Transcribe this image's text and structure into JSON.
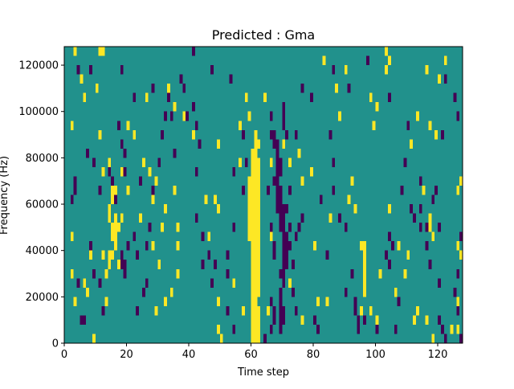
{
  "chart_data": {
    "type": "heatmap",
    "title": "Predicted : Gma",
    "xlabel": "Time step",
    "ylabel": "Frequency (Hz)",
    "xlim": [
      0,
      128
    ],
    "ylim": [
      0,
      128000
    ],
    "x_ticks": [
      0,
      20,
      40,
      60,
      80,
      100,
      120
    ],
    "y_ticks": [
      0,
      20000,
      40000,
      60000,
      80000,
      100000,
      120000
    ],
    "x_tick_labels": [
      "0",
      "20",
      "40",
      "60",
      "80",
      "100",
      "120"
    ],
    "y_tick_labels": [
      "0",
      "20000",
      "40000",
      "60000",
      "80000",
      "100000",
      "120000"
    ],
    "grid": false,
    "colormap": "viridis",
    "value_levels": [
      -1,
      0,
      1
    ],
    "colors": {
      "low": "#440154",
      "mid": "#21918c",
      "high": "#fde725"
    },
    "background_value": 0,
    "cell_size": {
      "time_step": 1,
      "frequency_hz": 4000
    },
    "high_cells": [
      [
        60,
        0
      ],
      [
        61,
        0
      ],
      [
        62,
        0
      ],
      [
        60,
        4000
      ],
      [
        61,
        4000
      ],
      [
        62,
        4000
      ],
      [
        60,
        8000
      ],
      [
        61,
        8000
      ],
      [
        62,
        8000
      ],
      [
        60,
        12000
      ],
      [
        61,
        12000
      ],
      [
        62,
        12000
      ],
      [
        60,
        16000
      ],
      [
        61,
        16000
      ],
      [
        60,
        20000
      ],
      [
        61,
        20000
      ],
      [
        62,
        20000
      ],
      [
        60,
        24000
      ],
      [
        61,
        24000
      ],
      [
        62,
        24000
      ],
      [
        60,
        28000
      ],
      [
        61,
        28000
      ],
      [
        62,
        28000
      ],
      [
        60,
        32000
      ],
      [
        61,
        32000
      ],
      [
        62,
        32000
      ],
      [
        60,
        36000
      ],
      [
        61,
        36000
      ],
      [
        62,
        36000
      ],
      [
        60,
        40000
      ],
      [
        61,
        40000
      ],
      [
        62,
        40000
      ],
      [
        59,
        44000
      ],
      [
        60,
        44000
      ],
      [
        61,
        44000
      ],
      [
        62,
        44000
      ],
      [
        59,
        48000
      ],
      [
        60,
        48000
      ],
      [
        61,
        48000
      ],
      [
        62,
        48000
      ],
      [
        59,
        52000
      ],
      [
        60,
        52000
      ],
      [
        61,
        52000
      ],
      [
        62,
        52000
      ],
      [
        59,
        56000
      ],
      [
        60,
        56000
      ],
      [
        61,
        56000
      ],
      [
        62,
        56000
      ],
      [
        59,
        60000
      ],
      [
        60,
        60000
      ],
      [
        61,
        60000
      ],
      [
        62,
        60000
      ],
      [
        59,
        64000
      ],
      [
        60,
        64000
      ],
      [
        61,
        64000
      ],
      [
        62,
        64000
      ],
      [
        59,
        68000
      ],
      [
        60,
        68000
      ],
      [
        61,
        68000
      ],
      [
        62,
        68000
      ],
      [
        60,
        72000
      ],
      [
        61,
        72000
      ],
      [
        62,
        72000
      ],
      [
        60,
        76000
      ],
      [
        61,
        76000
      ],
      [
        62,
        76000
      ],
      [
        60,
        80000
      ],
      [
        61,
        80000
      ],
      [
        61,
        84000
      ],
      [
        62,
        84000
      ],
      [
        61,
        88000
      ],
      [
        14,
        36000
      ],
      [
        15,
        36000
      ],
      [
        16,
        40000
      ],
      [
        15,
        44000
      ],
      [
        16,
        44000
      ],
      [
        15,
        48000
      ],
      [
        16,
        48000
      ],
      [
        14,
        52000
      ],
      [
        16,
        52000
      ],
      [
        14,
        56000
      ],
      [
        15,
        60000
      ],
      [
        15,
        64000
      ],
      [
        14,
        32000
      ],
      [
        13,
        28000
      ],
      [
        12,
        36000
      ],
      [
        13,
        16000
      ],
      [
        6,
        24000
      ],
      [
        7,
        20000
      ],
      [
        11,
        88000
      ],
      [
        12,
        72000
      ],
      [
        14,
        76000
      ],
      [
        16,
        64000
      ],
      [
        17,
        48000
      ],
      [
        3,
        124000
      ],
      [
        12,
        124000
      ],
      [
        5,
        112000
      ],
      [
        10,
        108000
      ],
      [
        2,
        92000
      ],
      [
        6,
        104000
      ],
      [
        18,
        72000
      ],
      [
        20,
        92000
      ],
      [
        20,
        64000
      ],
      [
        17,
        32000
      ],
      [
        18,
        52000
      ],
      [
        22,
        88000
      ],
      [
        24,
        52000
      ],
      [
        26,
        104000
      ],
      [
        27,
        72000
      ],
      [
        28,
        60000
      ],
      [
        29,
        68000
      ],
      [
        30,
        32000
      ],
      [
        29,
        12000
      ],
      [
        31,
        48000
      ],
      [
        32,
        56000
      ],
      [
        33,
        108000
      ],
      [
        34,
        20000
      ],
      [
        36,
        48000
      ],
      [
        36,
        40000
      ],
      [
        35,
        64000
      ],
      [
        36,
        28000
      ],
      [
        35,
        100000
      ],
      [
        38,
        96000
      ],
      [
        49,
        56000
      ],
      [
        49,
        84000
      ],
      [
        48,
        60000
      ],
      [
        49,
        16000
      ],
      [
        49,
        4000
      ],
      [
        50,
        0
      ],
      [
        54,
        24000
      ],
      [
        56,
        92000
      ],
      [
        56,
        76000
      ],
      [
        57,
        12000
      ],
      [
        59,
        96000
      ],
      [
        64,
        104000
      ],
      [
        66,
        76000
      ],
      [
        70,
        84000
      ],
      [
        72,
        24000
      ],
      [
        75,
        80000
      ],
      [
        76,
        68000
      ],
      [
        79,
        72000
      ],
      [
        80,
        40000
      ],
      [
        81,
        16000
      ],
      [
        84,
        16000
      ],
      [
        85,
        52000
      ],
      [
        91,
        60000
      ],
      [
        92,
        68000
      ],
      [
        93,
        56000
      ],
      [
        95,
        12000
      ],
      [
        95,
        40000
      ],
      [
        96,
        40000
      ],
      [
        96,
        36000
      ],
      [
        96,
        32000
      ],
      [
        96,
        28000
      ],
      [
        96,
        24000
      ],
      [
        96,
        20000
      ],
      [
        98,
        12000
      ],
      [
        100,
        8000
      ],
      [
        101,
        28000
      ],
      [
        99,
        92000
      ],
      [
        100,
        100000
      ],
      [
        98,
        104000
      ],
      [
        103,
        116000
      ],
      [
        103,
        124000
      ],
      [
        104,
        120000
      ],
      [
        106,
        20000
      ],
      [
        104,
        56000
      ],
      [
        107,
        40000
      ],
      [
        109,
        28000
      ],
      [
        110,
        36000
      ],
      [
        111,
        84000
      ],
      [
        113,
        12000
      ],
      [
        113,
        96000
      ],
      [
        115,
        64000
      ],
      [
        116,
        116000
      ],
      [
        116,
        8000
      ],
      [
        117,
        92000
      ],
      [
        117,
        52000
      ],
      [
        117,
        48000
      ],
      [
        118,
        44000
      ],
      [
        119,
        88000
      ],
      [
        120,
        112000
      ],
      [
        122,
        120000
      ],
      [
        124,
        4000
      ],
      [
        126,
        4000
      ],
      [
        126,
        16000
      ],
      [
        127,
        36000
      ],
      [
        126,
        40000
      ],
      [
        127,
        68000
      ],
      [
        126,
        64000
      ],
      [
        87,
        108000
      ],
      [
        88,
        96000
      ],
      [
        90,
        116000
      ],
      [
        9,
        0
      ],
      [
        8,
        36000
      ],
      [
        2,
        44000
      ],
      [
        2,
        28000
      ],
      [
        11,
        124000
      ],
      [
        25,
        76000
      ],
      [
        28,
        40000
      ],
      [
        32,
        16000
      ],
      [
        45,
        60000
      ],
      [
        46,
        44000
      ],
      [
        41,
        88000
      ],
      [
        58,
        104000
      ],
      [
        66,
        44000
      ],
      [
        65,
        12000
      ],
      [
        72,
        76000
      ],
      [
        83,
        120000
      ],
      [
        76,
        8000
      ],
      [
        118,
        0
      ],
      [
        112,
        8000
      ],
      [
        3,
        16000
      ]
    ],
    "low_cells": [
      [
        69,
        4000
      ],
      [
        69,
        8000
      ],
      [
        70,
        8000
      ],
      [
        69,
        12000
      ],
      [
        70,
        12000
      ],
      [
        69,
        16000
      ],
      [
        69,
        20000
      ],
      [
        70,
        24000
      ],
      [
        69,
        28000
      ],
      [
        70,
        28000
      ],
      [
        70,
        32000
      ],
      [
        71,
        32000
      ],
      [
        70,
        36000
      ],
      [
        71,
        36000
      ],
      [
        70,
        40000
      ],
      [
        71,
        40000
      ],
      [
        70,
        44000
      ],
      [
        71,
        44000
      ],
      [
        69,
        48000
      ],
      [
        70,
        48000
      ],
      [
        69,
        52000
      ],
      [
        70,
        52000
      ],
      [
        68,
        56000
      ],
      [
        69,
        56000
      ],
      [
        70,
        56000
      ],
      [
        68,
        60000
      ],
      [
        69,
        60000
      ],
      [
        68,
        64000
      ],
      [
        69,
        64000
      ],
      [
        67,
        68000
      ],
      [
        68,
        68000
      ],
      [
        68,
        72000
      ],
      [
        69,
        72000
      ],
      [
        68,
        76000
      ],
      [
        69,
        76000
      ],
      [
        68,
        80000
      ],
      [
        68,
        84000
      ],
      [
        67,
        84000
      ],
      [
        66,
        88000
      ],
      [
        67,
        88000
      ],
      [
        70,
        92000
      ],
      [
        70,
        96000
      ],
      [
        66,
        96000
      ],
      [
        71,
        88000
      ],
      [
        66,
        48000
      ],
      [
        67,
        40000
      ],
      [
        67,
        36000
      ],
      [
        66,
        16000
      ],
      [
        67,
        12000
      ],
      [
        67,
        8000
      ],
      [
        66,
        4000
      ],
      [
        64,
        0
      ],
      [
        72,
        40000
      ],
      [
        72,
        48000
      ],
      [
        73,
        32000
      ],
      [
        73,
        20000
      ],
      [
        74,
        12000
      ],
      [
        75,
        48000
      ],
      [
        74,
        44000
      ],
      [
        81,
        4000
      ],
      [
        80,
        8000
      ],
      [
        84,
        36000
      ],
      [
        82,
        60000
      ],
      [
        86,
        64000
      ],
      [
        86,
        76000
      ],
      [
        88,
        52000
      ],
      [
        90,
        20000
      ],
      [
        90,
        48000
      ],
      [
        92,
        28000
      ],
      [
        93,
        16000
      ],
      [
        94,
        4000
      ],
      [
        94,
        8000
      ],
      [
        93,
        12000
      ],
      [
        96,
        8000
      ],
      [
        100,
        4000
      ],
      [
        103,
        36000
      ],
      [
        104,
        44000
      ],
      [
        104,
        32000
      ],
      [
        105,
        40000
      ],
      [
        106,
        4000
      ],
      [
        107,
        16000
      ],
      [
        108,
        64000
      ],
      [
        109,
        76000
      ],
      [
        111,
        56000
      ],
      [
        112,
        52000
      ],
      [
        114,
        56000
      ],
      [
        114,
        48000
      ],
      [
        114,
        68000
      ],
      [
        116,
        48000
      ],
      [
        116,
        40000
      ],
      [
        117,
        32000
      ],
      [
        120,
        24000
      ],
      [
        120,
        8000
      ],
      [
        121,
        4000
      ],
      [
        122,
        0
      ],
      [
        125,
        20000
      ],
      [
        126,
        28000
      ],
      [
        127,
        44000
      ],
      [
        127,
        36000
      ],
      [
        126,
        12000
      ],
      [
        127,
        0
      ],
      [
        126,
        96000
      ],
      [
        125,
        104000
      ],
      [
        122,
        112000
      ],
      [
        121,
        88000
      ],
      [
        119,
        64000
      ],
      [
        118,
        60000
      ],
      [
        120,
        48000
      ],
      [
        110,
        92000
      ],
      [
        104,
        104000
      ],
      [
        97,
        120000
      ],
      [
        91,
        108000
      ],
      [
        85,
        88000
      ],
      [
        86,
        116000
      ],
      [
        79,
        104000
      ],
      [
        76,
        108000
      ],
      [
        74,
        88000
      ],
      [
        70,
        100000
      ],
      [
        72,
        64000
      ],
      [
        57,
        88000
      ],
      [
        58,
        76000
      ],
      [
        57,
        64000
      ],
      [
        52,
        36000
      ],
      [
        52,
        28000
      ],
      [
        54,
        4000
      ],
      [
        52,
        12000
      ],
      [
        47,
        24000
      ],
      [
        46,
        36000
      ],
      [
        44,
        44000
      ],
      [
        42,
        52000
      ],
      [
        42,
        72000
      ],
      [
        41,
        100000
      ],
      [
        43,
        84000
      ],
      [
        42,
        92000
      ],
      [
        38,
        108000
      ],
      [
        39,
        96000
      ],
      [
        37,
        112000
      ],
      [
        33,
        104000
      ],
      [
        32,
        96000
      ],
      [
        31,
        88000
      ],
      [
        30,
        76000
      ],
      [
        28,
        64000
      ],
      [
        27,
        48000
      ],
      [
        26,
        40000
      ],
      [
        26,
        24000
      ],
      [
        25,
        20000
      ],
      [
        23,
        12000
      ],
      [
        23,
        36000
      ],
      [
        22,
        44000
      ],
      [
        20,
        40000
      ],
      [
        19,
        32000
      ],
      [
        18,
        36000
      ],
      [
        18,
        32000
      ],
      [
        19,
        28000
      ],
      [
        19,
        72000
      ],
      [
        18,
        84000
      ],
      [
        19,
        80000
      ],
      [
        17,
        92000
      ],
      [
        16,
        60000
      ],
      [
        15,
        68000
      ],
      [
        14,
        72000
      ],
      [
        12,
        12000
      ],
      [
        11,
        24000
      ],
      [
        9,
        28000
      ],
      [
        8,
        40000
      ],
      [
        6,
        8000
      ],
      [
        5,
        8000
      ],
      [
        4,
        24000
      ],
      [
        3,
        68000
      ],
      [
        3,
        64000
      ],
      [
        2,
        60000
      ],
      [
        4,
        116000
      ],
      [
        8,
        116000
      ],
      [
        18,
        116000
      ],
      [
        22,
        104000
      ],
      [
        28,
        108000
      ],
      [
        34,
        96000
      ],
      [
        41,
        124000
      ],
      [
        47,
        116000
      ],
      [
        53,
        112000
      ],
      [
        65,
        64000
      ],
      [
        71,
        56000
      ],
      [
        76,
        52000
      ],
      [
        54,
        48000
      ],
      [
        54,
        72000
      ],
      [
        7,
        80000
      ],
      [
        9,
        76000
      ],
      [
        11,
        64000
      ],
      [
        24,
        68000
      ],
      [
        35,
        80000
      ],
      [
        44,
        32000
      ],
      [
        48,
        32000
      ]
    ]
  }
}
